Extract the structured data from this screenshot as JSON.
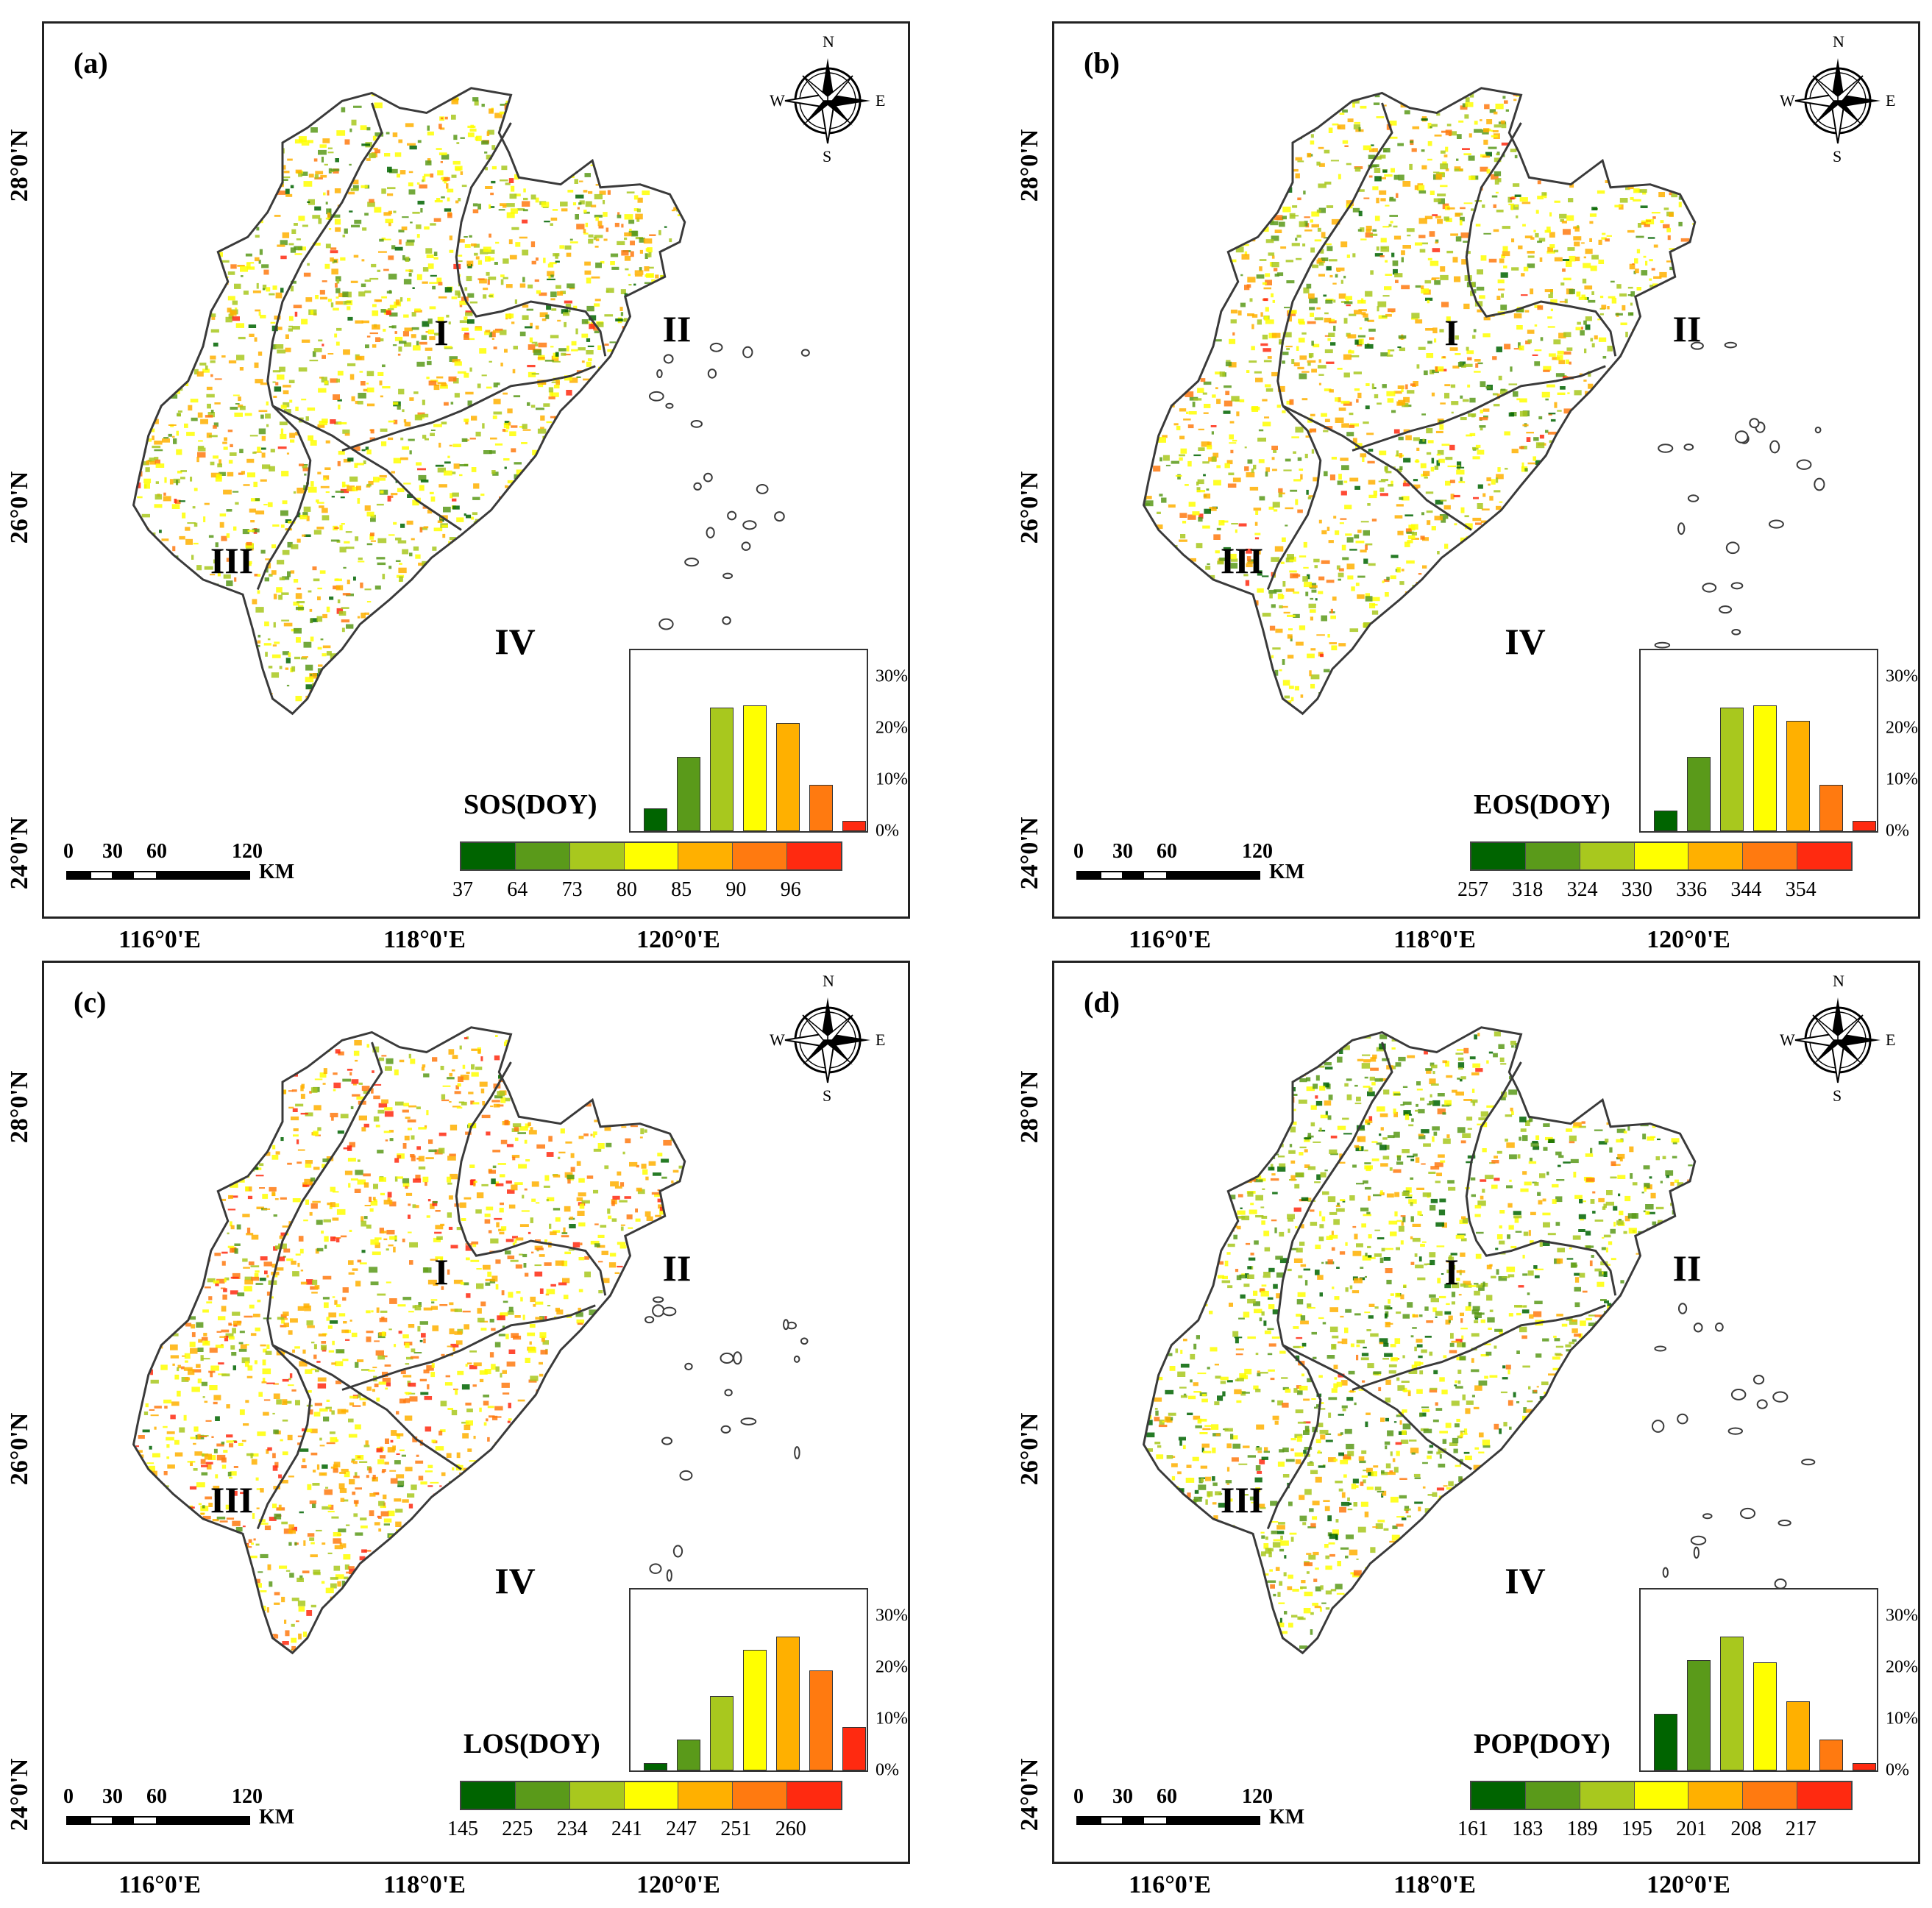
{
  "lat_labels": [
    "28°0'N",
    "26°0'N",
    "24°0'N"
  ],
  "lon_labels": [
    "116°0'E",
    "118°0'E",
    "120°0'E"
  ],
  "region_labels": [
    "I",
    "II",
    "III",
    "IV"
  ],
  "compass": {
    "n": "N",
    "s": "S",
    "e": "E",
    "w": "W"
  },
  "scale": {
    "ticks": [
      "0",
      "30",
      "60",
      "120"
    ],
    "unit": "KM"
  },
  "hist_axis": [
    "30%",
    "20%",
    "10%",
    "0%"
  ],
  "colors": [
    "#006400",
    "#5a9a1a",
    "#a8c81e",
    "#ffff00",
    "#ffb000",
    "#ff7a10",
    "#ff2a10"
  ],
  "panels": [
    {
      "label": "(a)",
      "variable": "SOS(DOY)",
      "legend_values": [
        "37",
        "64",
        "73",
        "80",
        "85",
        "90",
        "96"
      ],
      "histogram_percent": [
        4.5,
        14.5,
        24,
        24.5,
        21,
        9,
        2
      ]
    },
    {
      "label": "(b)",
      "variable": "EOS(DOY)",
      "legend_values": [
        "257",
        "318",
        "324",
        "330",
        "336",
        "344",
        "354"
      ],
      "histogram_percent": [
        4,
        14.5,
        24,
        24.5,
        21.5,
        9,
        2
      ]
    },
    {
      "label": "(c)",
      "variable": "LOS(DOY)",
      "legend_values": [
        "145",
        "225",
        "234",
        "241",
        "247",
        "251",
        "260"
      ],
      "histogram_percent": [
        1.5,
        6,
        14.5,
        23.5,
        26,
        19.5,
        8.5
      ]
    },
    {
      "label": "(d)",
      "variable": "POP(DOY)",
      "legend_values": [
        "161",
        "183",
        "189",
        "195",
        "201",
        "208",
        "217"
      ],
      "histogram_percent": [
        11,
        21.5,
        26,
        21,
        13.5,
        6,
        1.5
      ]
    }
  ]
}
